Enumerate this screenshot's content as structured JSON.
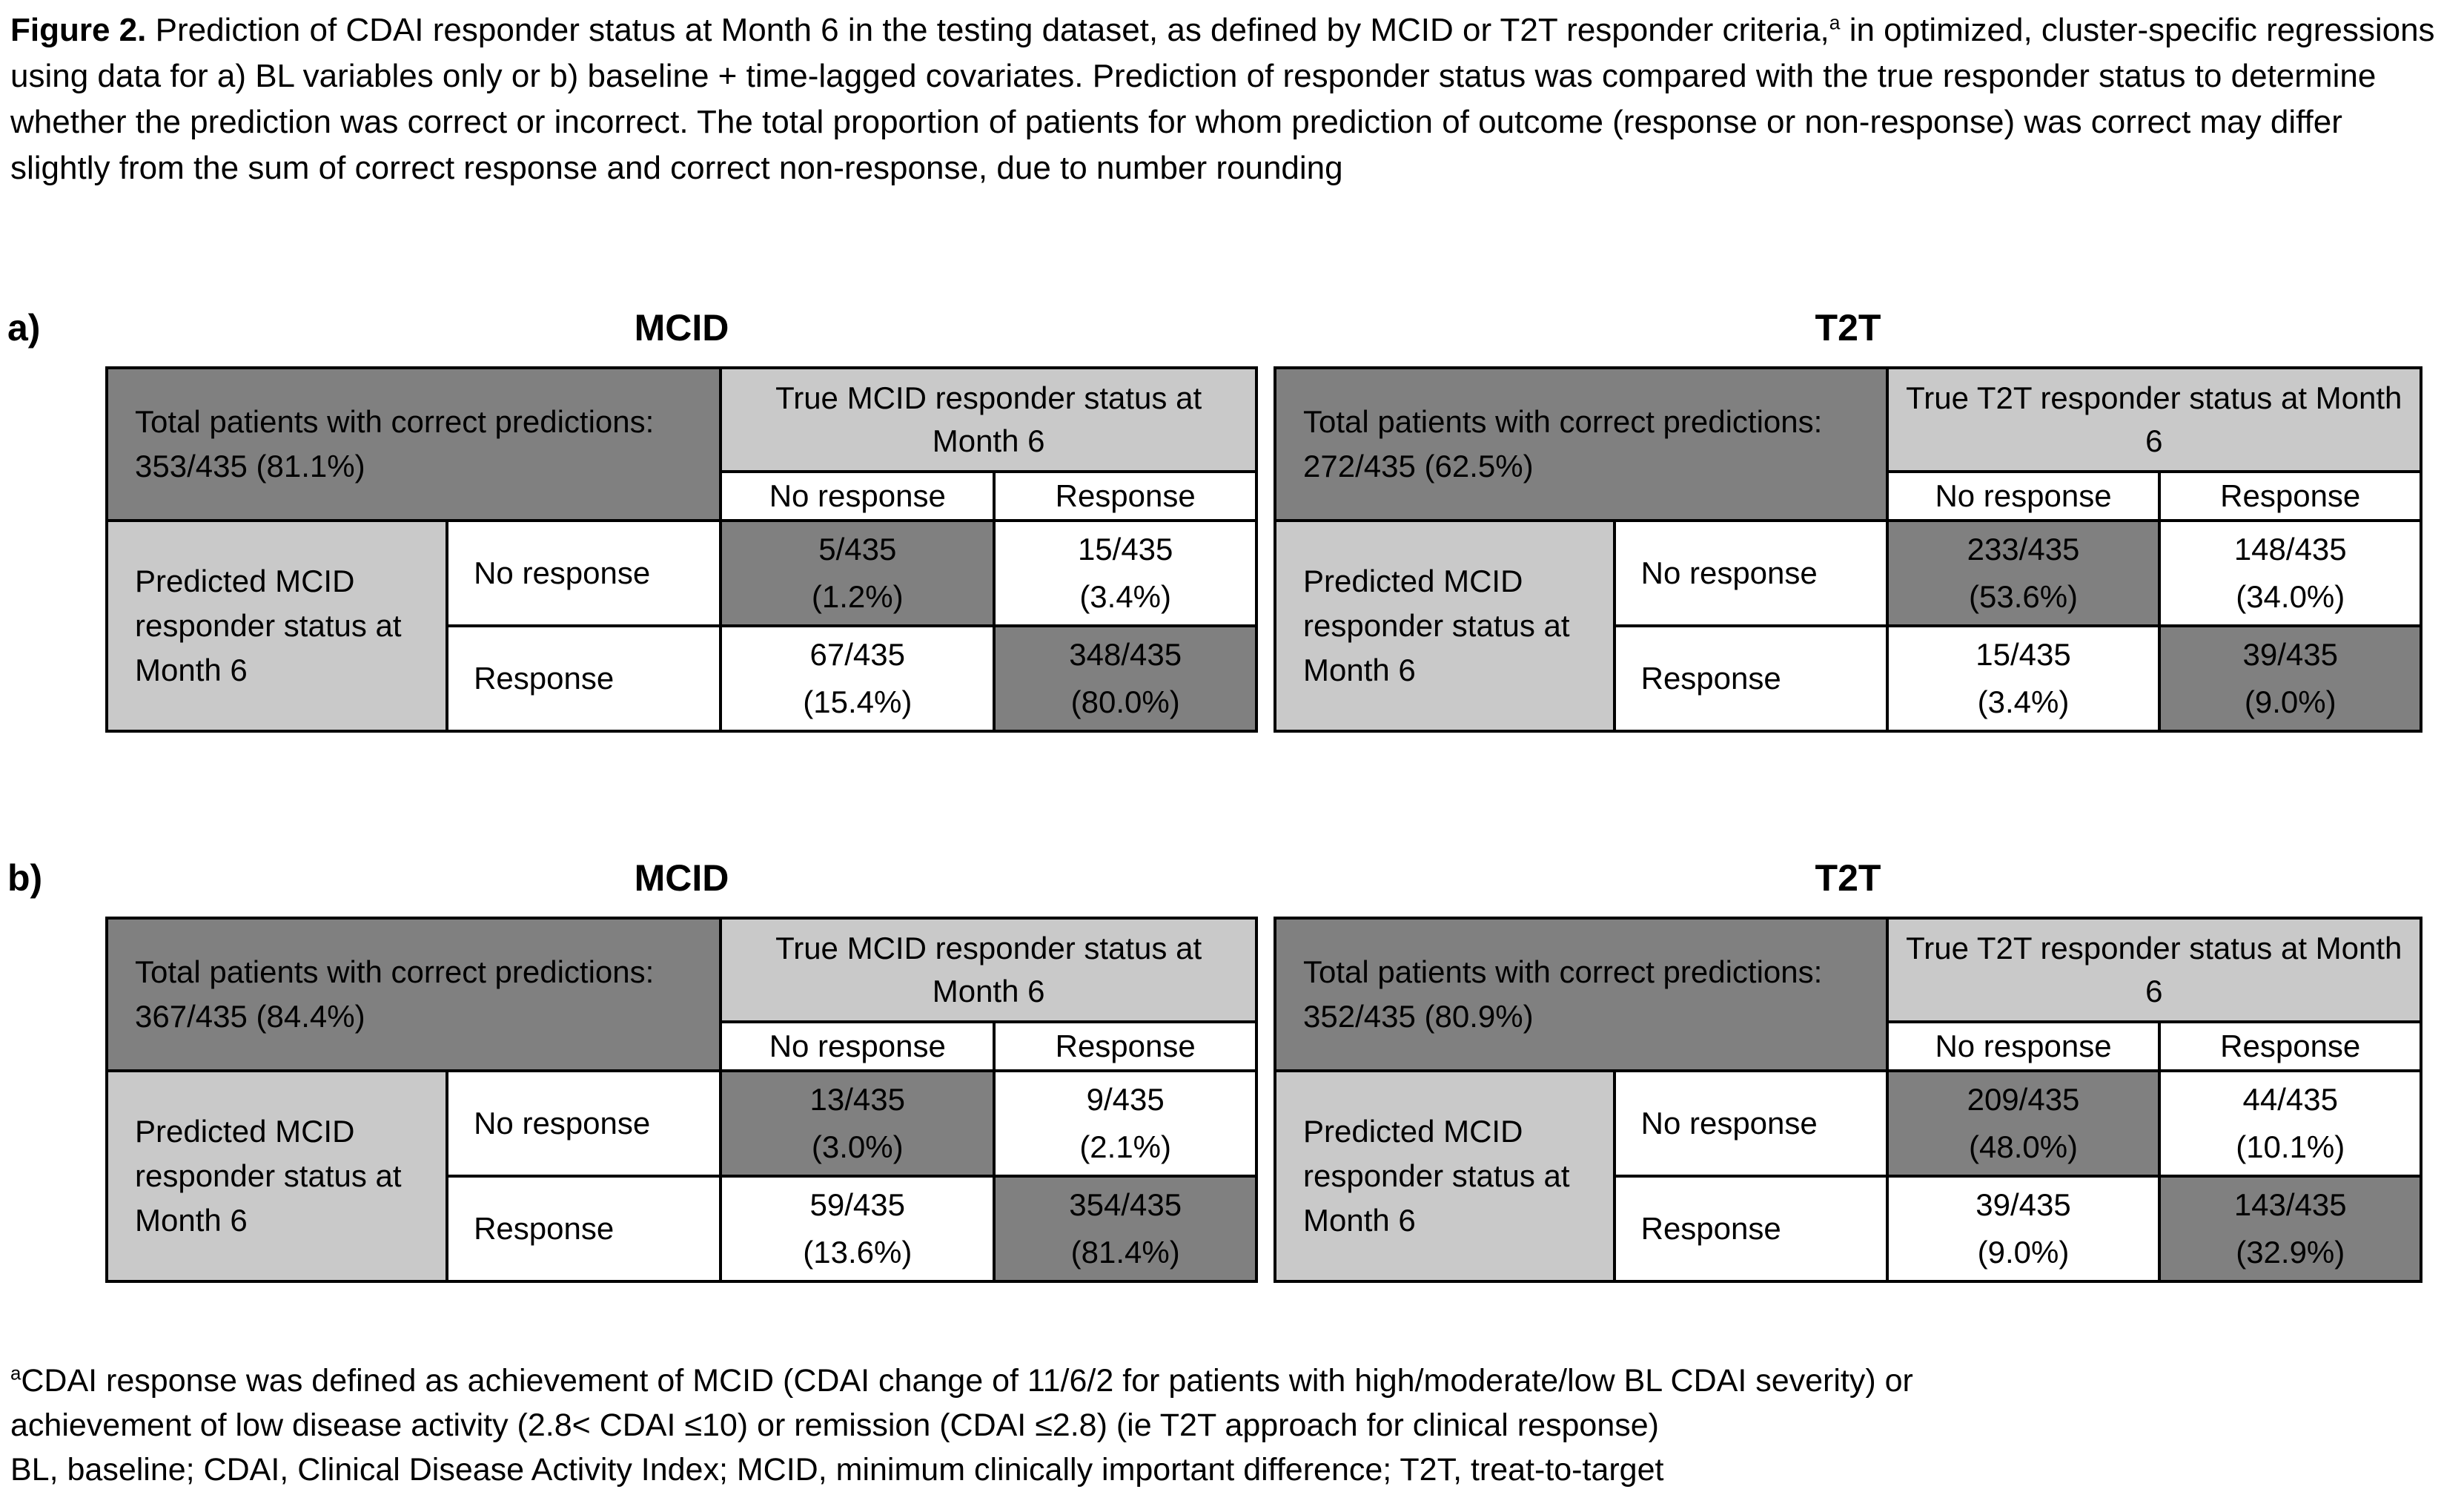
{
  "colors": {
    "dark_gray": "#808080",
    "light_gray": "#c9c9c9",
    "border": "#000000",
    "background": "#ffffff"
  },
  "caption": {
    "label": "Figure 2.",
    "before_sup": " Prediction of CDAI responder status at Month 6 in the testing dataset, as defined by MCID or T2T responder criteria,",
    "sup": "a",
    "after_sup": " in optimized, cluster-specific regressions using data for a) BL variables only or b) baseline + time-lagged covariates. Prediction of responder status was compared with the true responder status to determine whether the prediction was correct or incorrect. The total proportion of patients for whom prediction of outcome (response or non-response) was correct may differ slightly from the sum of correct response and correct non-response, due to number rounding"
  },
  "panels": [
    {
      "label": "a)",
      "tables": [
        {
          "title": "MCID",
          "total_label": "Total patients with correct predictions: 353/435 (81.1%)",
          "true_header": "True MCID responder status at Month 6",
          "col_headers": [
            "No response",
            "Response"
          ],
          "row_axis_label": "Predicted MCID responder status at Month 6",
          "rows": [
            {
              "header": "No response",
              "cells": [
                {
                  "value": "5/435",
                  "pct": "(1.2%)",
                  "highlight": true
                },
                {
                  "value": "15/435",
                  "pct": "(3.4%)",
                  "highlight": false
                }
              ]
            },
            {
              "header": "Response",
              "cells": [
                {
                  "value": "67/435",
                  "pct": "(15.4%)",
                  "highlight": false
                },
                {
                  "value": "348/435",
                  "pct": "(80.0%)",
                  "highlight": true
                }
              ]
            }
          ]
        },
        {
          "title": "T2T",
          "total_label": "Total patients with correct predictions: 272/435 (62.5%)",
          "true_header": "True T2T responder status at Month 6",
          "col_headers": [
            "No response",
            "Response"
          ],
          "row_axis_label": "Predicted MCID responder status at Month 6",
          "rows": [
            {
              "header": "No response",
              "cells": [
                {
                  "value": "233/435",
                  "pct": "(53.6%)",
                  "highlight": true
                },
                {
                  "value": "148/435",
                  "pct": "(34.0%)",
                  "highlight": false
                }
              ]
            },
            {
              "header": "Response",
              "cells": [
                {
                  "value": "15/435",
                  "pct": "(3.4%)",
                  "highlight": false
                },
                {
                  "value": "39/435",
                  "pct": "(9.0%)",
                  "highlight": true
                }
              ]
            }
          ]
        }
      ]
    },
    {
      "label": "b)",
      "tables": [
        {
          "title": "MCID",
          "total_label": "Total patients with correct predictions: 367/435 (84.4%)",
          "true_header": "True MCID responder status at Month 6",
          "col_headers": [
            "No response",
            "Response"
          ],
          "row_axis_label": "Predicted MCID responder status at Month 6",
          "rows": [
            {
              "header": "No response",
              "cells": [
                {
                  "value": "13/435",
                  "pct": "(3.0%)",
                  "highlight": true
                },
                {
                  "value": "9/435",
                  "pct": "(2.1%)",
                  "highlight": false
                }
              ]
            },
            {
              "header": "Response",
              "cells": [
                {
                  "value": "59/435",
                  "pct": "(13.6%)",
                  "highlight": false
                },
                {
                  "value": "354/435",
                  "pct": "(81.4%)",
                  "highlight": true
                }
              ]
            }
          ]
        },
        {
          "title": "T2T",
          "total_label": "Total patients with correct predictions: 352/435 (80.9%)",
          "true_header": "True T2T responder status at Month 6",
          "col_headers": [
            "No response",
            "Response"
          ],
          "row_axis_label": "Predicted MCID responder status at Month 6",
          "rows": [
            {
              "header": "No response",
              "cells": [
                {
                  "value": "209/435",
                  "pct": "(48.0%)",
                  "highlight": true
                },
                {
                  "value": "44/435",
                  "pct": "(10.1%)",
                  "highlight": false
                }
              ]
            },
            {
              "header": "Response",
              "cells": [
                {
                  "value": "39/435",
                  "pct": "(9.0%)",
                  "highlight": false
                },
                {
                  "value": "143/435",
                  "pct": "(32.9%)",
                  "highlight": true
                }
              ]
            }
          ]
        }
      ]
    }
  ],
  "footnote": {
    "sup": "a",
    "line1": "CDAI response was defined as achievement of MCID (CDAI change of 11/6/2 for patients with high/moderate/low BL CDAI severity) or",
    "line2": "achievement of low disease activity (2.8< CDAI ≤10) or remission (CDAI ≤2.8) (ie T2T approach for clinical response)",
    "line3": "BL, baseline; CDAI, Clinical Disease Activity Index; MCID, minimum clinically important difference; T2T, treat-to-target"
  }
}
